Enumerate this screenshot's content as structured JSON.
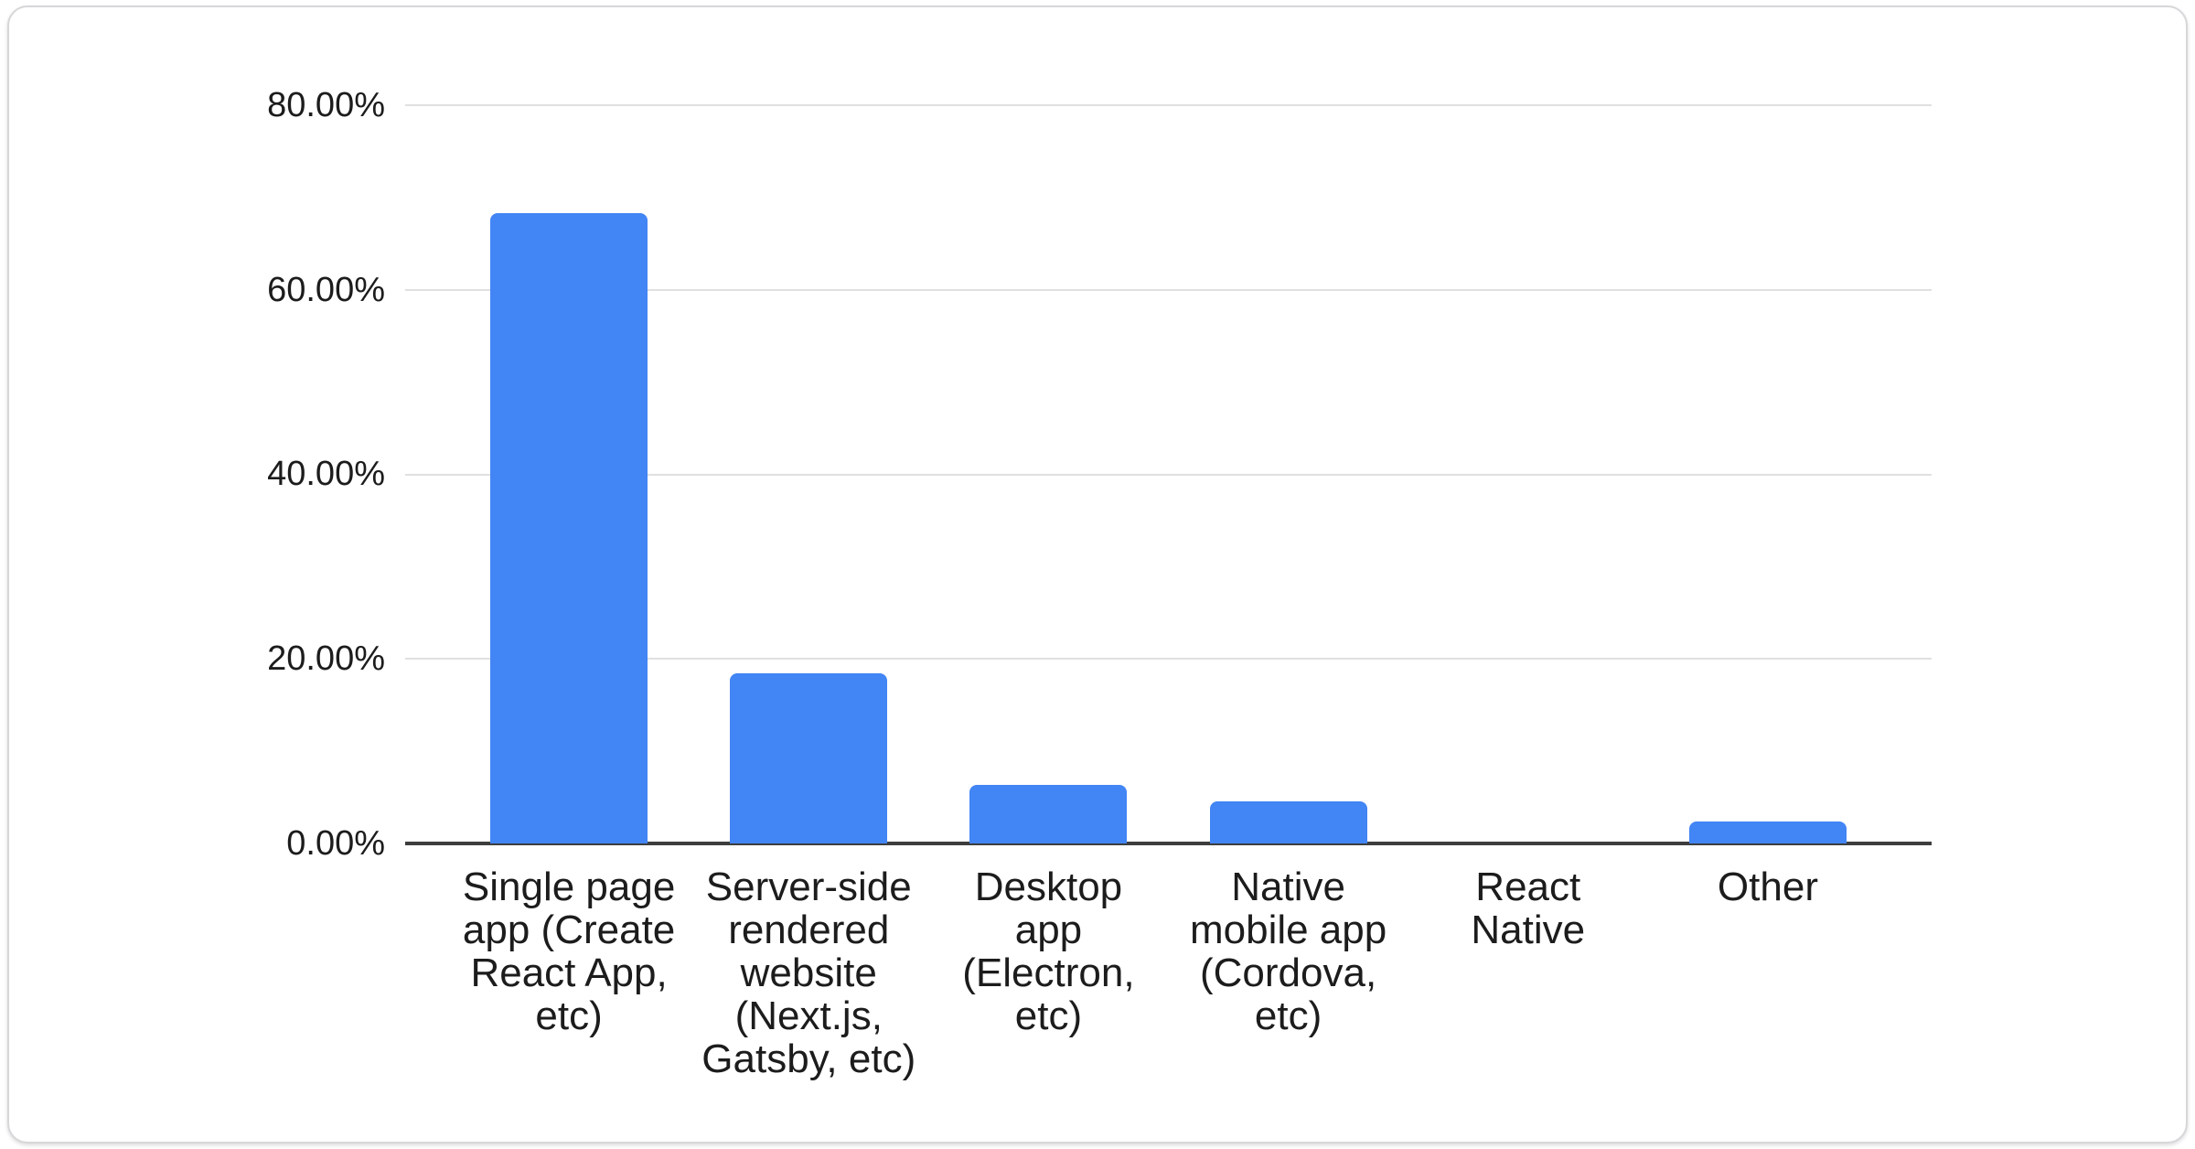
{
  "chart_data": {
    "type": "bar",
    "title": "",
    "xlabel": "",
    "ylabel": "",
    "categories": [
      "Single page app (Create React App, etc)",
      "Server-side rendered website (Next.js, Gatsby, etc)",
      "Desktop app (Electron, etc)",
      "Native mobile app (Cordova, etc)",
      "React Native",
      "Other"
    ],
    "categories_wrapped": [
      "Single page\napp (Create\nReact App,\netc)",
      "Server-side\nrendered\nwebsite\n(Next.js,\nGatsby, etc)",
      "Desktop\napp\n(Electron,\netc)",
      "Native\nmobile app\n(Cordova,\netc)",
      "React\nNative",
      "Other"
    ],
    "values": [
      68.3,
      18.4,
      6.3,
      4.6,
      0,
      2.4
    ],
    "ylim": [
      0,
      80
    ],
    "ytick_step": 20,
    "ytick_labels": [
      "80.00%",
      "60.00%",
      "40.00%",
      "20.00%",
      "0.00%"
    ],
    "ytick_values": [
      80,
      60,
      40,
      20,
      0
    ],
    "grid": true,
    "legend_position": "none",
    "bar_color": "#4285f4",
    "axis_line_color": "#3d3d3d",
    "gridline_color": "#e0e0e0",
    "label_color": "#1c1c1c"
  }
}
